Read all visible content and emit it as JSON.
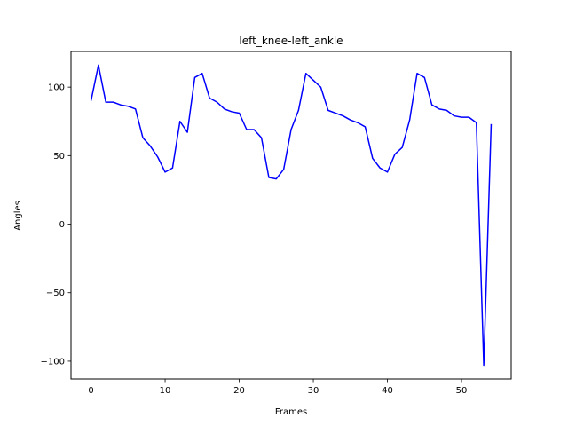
{
  "chart_data": {
    "type": "line",
    "title": "left_knee-left_ankle",
    "xlabel": "Frames",
    "ylabel": "Angles",
    "xlim": [
      -2.7,
      56.7
    ],
    "ylim": [
      -113,
      126
    ],
    "x_ticks": [
      0,
      10,
      20,
      30,
      40,
      50
    ],
    "y_ticks": [
      -100,
      -50,
      0,
      50,
      100
    ],
    "x_tick_labels": [
      "0",
      "10",
      "20",
      "30",
      "40",
      "50"
    ],
    "y_tick_labels": [
      "−100",
      "−50",
      "0",
      "50",
      "100"
    ],
    "grid": false,
    "legend": "none",
    "series": [
      {
        "color": "#0000ff",
        "x": [
          0,
          1,
          2,
          3,
          4,
          5,
          6,
          7,
          8,
          9,
          10,
          11,
          12,
          13,
          14,
          15,
          16,
          17,
          18,
          19,
          20,
          21,
          22,
          23,
          24,
          25,
          26,
          27,
          28,
          29,
          30,
          31,
          32,
          33,
          34,
          35,
          36,
          37,
          38,
          39,
          40,
          41,
          42,
          43,
          44,
          45,
          46,
          47,
          48,
          49,
          50,
          51,
          52,
          53,
          54
        ],
        "values": [
          90,
          116,
          89,
          89,
          87,
          86,
          84,
          63,
          57,
          49,
          38,
          41,
          75,
          67,
          107,
          110,
          92,
          89,
          84,
          82,
          81,
          69,
          69,
          63,
          34,
          33,
          40,
          69,
          83,
          110,
          105,
          100,
          83,
          81,
          79,
          76,
          74,
          71,
          48,
          41,
          38,
          51,
          56,
          76,
          110,
          107,
          87,
          84,
          83,
          79,
          78,
          78,
          74,
          -103,
          73
        ]
      }
    ]
  }
}
